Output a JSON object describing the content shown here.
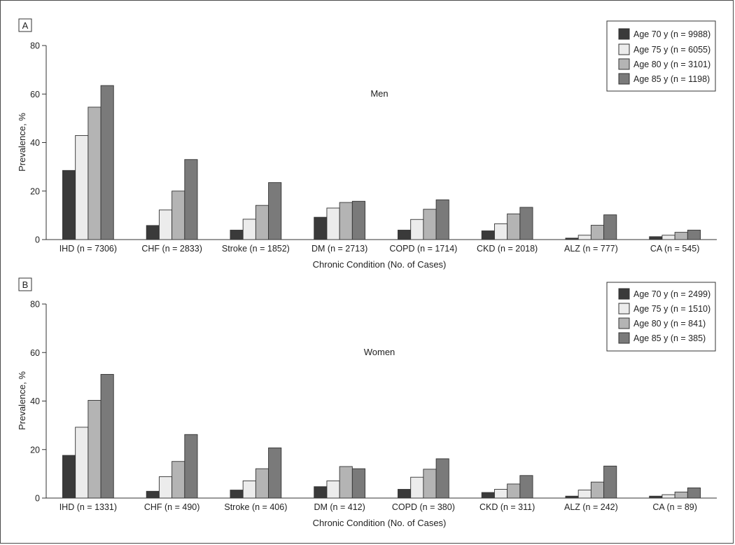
{
  "charts": [
    {
      "panel_label": "A",
      "chart_title": "Men",
      "ylabel": "Prevalence, %",
      "xlabel": "Chronic Condition (No. of Cases)",
      "legend": [
        "Age 70 y (n = 9988)",
        "Age 75 y (n = 6055)",
        "Age 80 y (n = 3101)",
        "Age 85 y (n = 1198)"
      ]
    },
    {
      "panel_label": "B",
      "chart_title": "Women",
      "ylabel": "Prevalence, %",
      "xlabel": "Chronic Condition (No. of Cases)",
      "legend": [
        "Age 70 y (n = 2499)",
        "Age 75 y (n = 1510)",
        "Age 80 y (n = 841)",
        "Age 85 y (n = 385)"
      ]
    }
  ],
  "series_colors": [
    "#3a3a3a",
    "#ececec",
    "#b4b4b4",
    "#7a7a7a"
  ],
  "chart_data": [
    {
      "type": "bar",
      "title": "Men",
      "xlabel": "Chronic Condition (No. of Cases)",
      "ylabel": "Prevalence, %",
      "ylim": [
        0,
        80
      ],
      "yticks": [
        0,
        20,
        40,
        60,
        80
      ],
      "categories": [
        "IHD (n = 7306)",
        "CHF (n = 2833)",
        "Stroke (n = 1852)",
        "DM (n = 2713)",
        "COPD (n = 1714)",
        "CKD (n = 2018)",
        "ALZ (n = 777)",
        "CA (n = 545)"
      ],
      "legend_position": "top-right",
      "grid": false,
      "series": [
        {
          "name": "Age 70 y (n = 9988)",
          "values": [
            28.5,
            5.8,
            3.9,
            9.2,
            3.9,
            3.6,
            0.6,
            1.2
          ]
        },
        {
          "name": "Age 75 y (n = 6055)",
          "values": [
            42.9,
            12.2,
            8.4,
            13.0,
            8.3,
            6.5,
            1.8,
            1.8
          ]
        },
        {
          "name": "Age 80 y (n = 3101)",
          "values": [
            54.6,
            20.0,
            14.1,
            15.3,
            12.5,
            10.6,
            5.9,
            3.0
          ]
        },
        {
          "name": "Age 85 y (n = 1198)",
          "values": [
            63.5,
            33.0,
            23.5,
            15.8,
            16.4,
            13.3,
            10.2,
            3.9
          ]
        }
      ]
    },
    {
      "type": "bar",
      "title": "Women",
      "xlabel": "Chronic Condition (No. of Cases)",
      "ylabel": "Prevalence, %",
      "ylim": [
        0,
        80
      ],
      "yticks": [
        0,
        20,
        40,
        60,
        80
      ],
      "categories": [
        "IHD (n = 1331)",
        "CHF (n = 490)",
        "Stroke (n = 406)",
        "DM (n = 412)",
        "COPD (n = 380)",
        "CKD (n = 311)",
        "ALZ (n = 242)",
        "CA (n = 89)"
      ],
      "legend_position": "top-right",
      "grid": false,
      "series": [
        {
          "name": "Age 70 y (n = 2499)",
          "values": [
            17.6,
            2.8,
            3.3,
            4.7,
            3.6,
            2.3,
            0.8,
            0.8
          ]
        },
        {
          "name": "Age 75 y (n = 1510)",
          "values": [
            29.2,
            8.8,
            7.1,
            7.1,
            8.6,
            3.6,
            3.3,
            1.4
          ]
        },
        {
          "name": "Age 80 y (n = 841)",
          "values": [
            40.3,
            15.1,
            12.1,
            13.0,
            11.9,
            5.8,
            6.6,
            2.5
          ]
        },
        {
          "name": "Age 85 y (n = 385)",
          "values": [
            51.0,
            26.2,
            20.7,
            12.1,
            16.2,
            9.3,
            13.2,
            4.2
          ]
        }
      ]
    }
  ]
}
